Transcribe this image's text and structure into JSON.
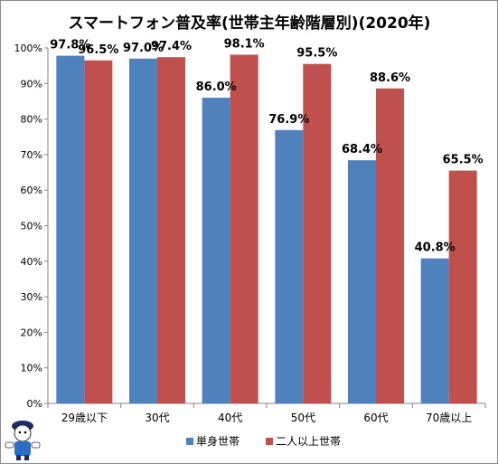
{
  "chart_data": {
    "type": "bar",
    "title": "スマートフォン普及率(世帯主年齢階層別)(2020年)",
    "categories": [
      "29歳以下",
      "30代",
      "40代",
      "50代",
      "60代",
      "70歳以上"
    ],
    "series": [
      {
        "name": "単身世帯",
        "color": "#4f81bd",
        "values": [
          97.8,
          97.0,
          86.0,
          76.9,
          68.4,
          40.8
        ],
        "labels": [
          "97.8%",
          "97.0%",
          "86.0%",
          "76.9%",
          "68.4%",
          "40.8%"
        ]
      },
      {
        "name": "二人以上世帯",
        "color": "#c0504d",
        "values": [
          96.5,
          97.4,
          98.1,
          95.5,
          88.6,
          65.5
        ],
        "labels": [
          "96.5%",
          "97.4%",
          "98.1%",
          "95.5%",
          "88.6%",
          "65.5%"
        ]
      }
    ],
    "ylim": [
      0,
      100
    ],
    "yticks": [
      "0%",
      "10%",
      "20%",
      "30%",
      "40%",
      "50%",
      "60%",
      "70%",
      "80%",
      "90%",
      "100%"
    ],
    "grid": false,
    "legend": "bottom"
  },
  "mascot_icon": "cartoon-mascot-icon"
}
